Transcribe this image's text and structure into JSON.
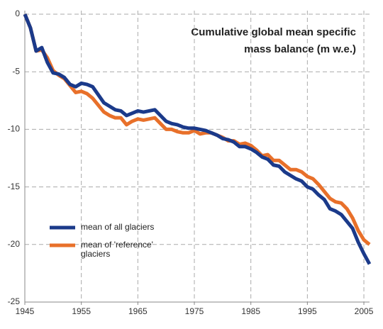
{
  "chart_data": {
    "type": "line",
    "title": [
      "Cumulative global mean specific",
      "mass balance (m w.e.)"
    ],
    "x": [
      1945,
      1946,
      1947,
      1948,
      1949,
      1950,
      1951,
      1952,
      1953,
      1954,
      1955,
      1956,
      1957,
      1958,
      1959,
      1960,
      1961,
      1962,
      1963,
      1964,
      1965,
      1966,
      1967,
      1968,
      1969,
      1970,
      1971,
      1972,
      1973,
      1974,
      1975,
      1976,
      1977,
      1978,
      1979,
      1980,
      1981,
      1982,
      1983,
      1984,
      1985,
      1986,
      1987,
      1988,
      1989,
      1990,
      1991,
      1992,
      1993,
      1994,
      1995,
      1996,
      1997,
      1998,
      1999,
      2000,
      2001,
      2002,
      2003,
      2004,
      2005,
      2006
    ],
    "series": [
      {
        "name": "mean of all glaciers",
        "color": "#1b3a8a",
        "values": [
          0,
          -1.2,
          -3.2,
          -2.9,
          -4.2,
          -5.1,
          -5.2,
          -5.5,
          -6.1,
          -6.3,
          -6.0,
          -6.1,
          -6.3,
          -7.0,
          -7.7,
          -8.0,
          -8.3,
          -8.4,
          -8.8,
          -8.6,
          -8.4,
          -8.5,
          -8.4,
          -8.3,
          -8.8,
          -9.3,
          -9.5,
          -9.6,
          -9.8,
          -9.9,
          -9.9,
          -10.0,
          -10.1,
          -10.3,
          -10.5,
          -10.8,
          -10.9,
          -11.1,
          -11.5,
          -11.5,
          -11.7,
          -12.0,
          -12.4,
          -12.6,
          -13.1,
          -13.2,
          -13.7,
          -14.0,
          -14.3,
          -14.5,
          -15.0,
          -15.2,
          -15.7,
          -16.1,
          -16.9,
          -17.1,
          -17.4,
          -18.0,
          -18.6,
          -19.8,
          -20.8,
          -21.7
        ]
      },
      {
        "name": "mean of 'reference' glaciers",
        "color": "#e8702a",
        "values": [
          0,
          -1.2,
          -3.2,
          -3.1,
          -3.8,
          -4.9,
          -5.3,
          -5.6,
          -6.2,
          -6.8,
          -6.7,
          -6.9,
          -7.3,
          -7.9,
          -8.5,
          -8.8,
          -9.0,
          -9.0,
          -9.6,
          -9.3,
          -9.1,
          -9.2,
          -9.1,
          -9.0,
          -9.5,
          -10.0,
          -10.0,
          -10.2,
          -10.3,
          -10.3,
          -10.1,
          -10.4,
          -10.3,
          -10.3,
          -10.5,
          -10.7,
          -11.0,
          -11.0,
          -11.3,
          -11.2,
          -11.4,
          -11.8,
          -12.3,
          -12.2,
          -12.7,
          -12.7,
          -13.1,
          -13.5,
          -13.5,
          -13.7,
          -14.1,
          -14.3,
          -14.8,
          -15.4,
          -16.0,
          -16.3,
          -16.4,
          -16.9,
          -17.7,
          -18.8,
          -19.6,
          -20.0
        ]
      }
    ],
    "xlim": [
      1945,
      2006
    ],
    "xticks": [
      1945,
      1955,
      1965,
      1975,
      1985,
      1995,
      2005
    ],
    "ylim": [
      -25,
      0
    ],
    "yticks": [
      0,
      -5,
      -10,
      -15,
      -20,
      -25
    ],
    "grid": true
  }
}
